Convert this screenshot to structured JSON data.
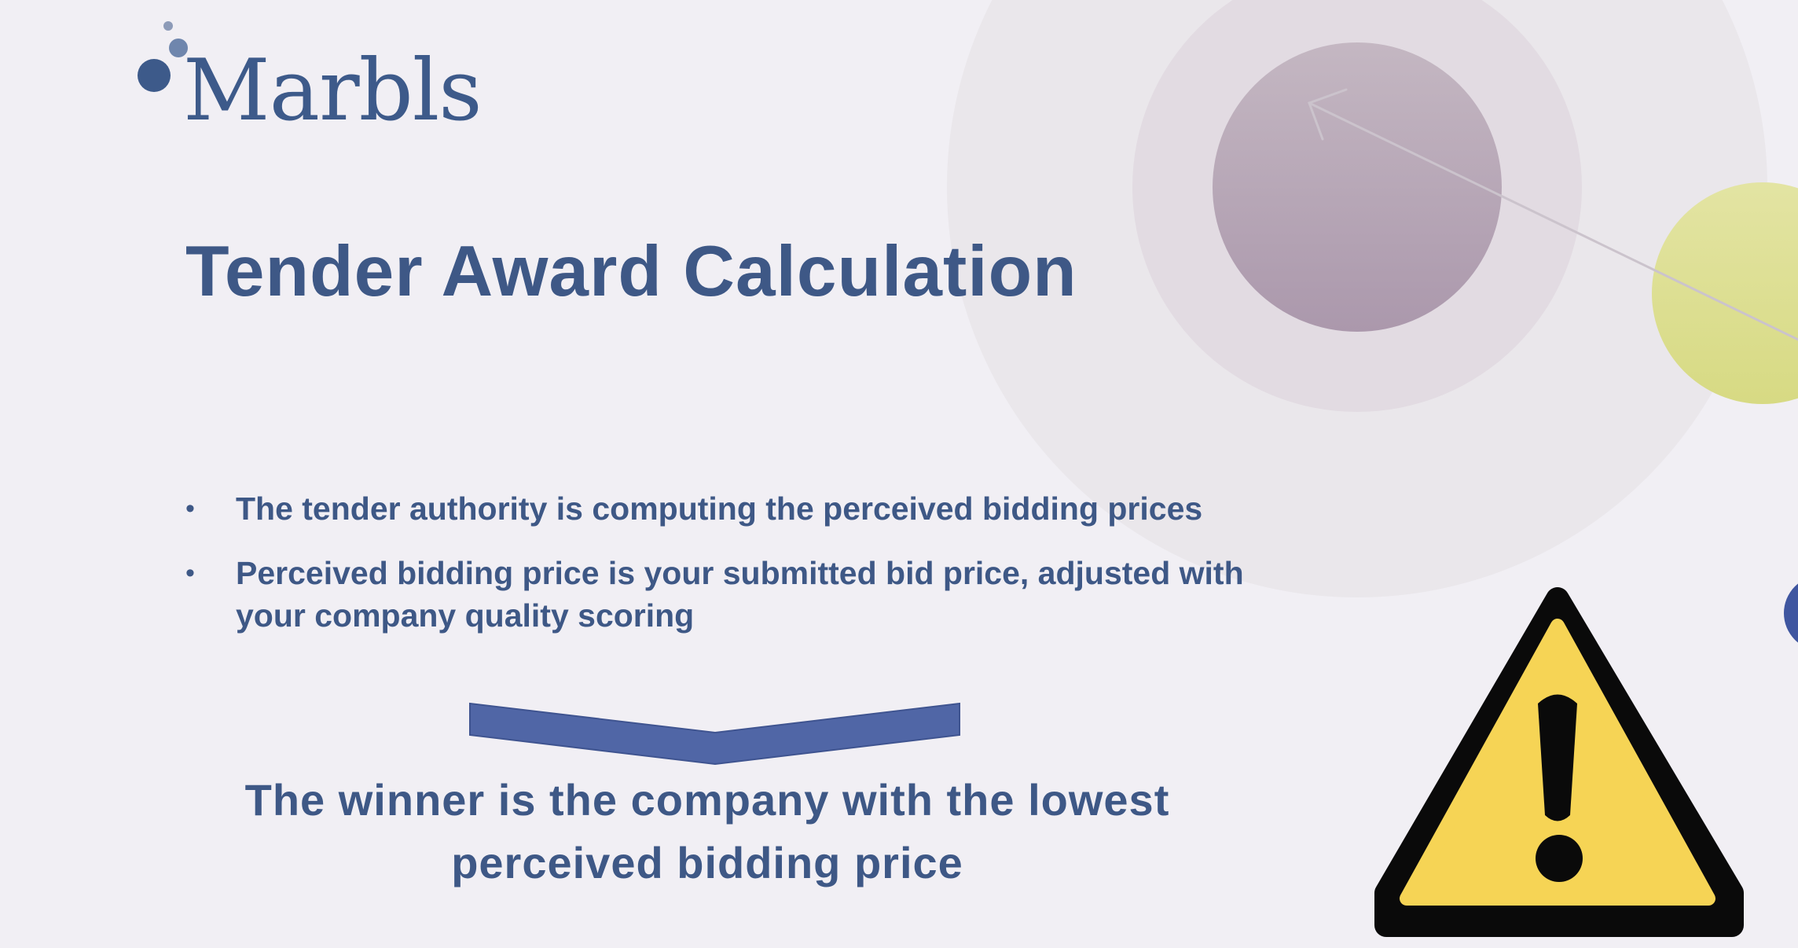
{
  "logo": {
    "text": "Marbls"
  },
  "title": "Tender Award Calculation",
  "bullets": [
    "The tender authority is computing the perceived bidding prices",
    "Perceived bidding price is your submitted bid price, adjusted with your company quality scoring"
  ],
  "bullet_marker": "•",
  "conclusion": {
    "line1": "The winner is the company with the lowest",
    "line2": "perceived bidding price"
  },
  "icons": {
    "chevron": "chevron-down-icon",
    "warning": "warning-icon"
  },
  "colors": {
    "text": "#3e5886",
    "background": "#f1eff4",
    "chevron": "#5066a6",
    "warning_yellow": "#f6d455",
    "circle_mauve": "#b5a4b4",
    "circle_green": "#dde08f"
  }
}
